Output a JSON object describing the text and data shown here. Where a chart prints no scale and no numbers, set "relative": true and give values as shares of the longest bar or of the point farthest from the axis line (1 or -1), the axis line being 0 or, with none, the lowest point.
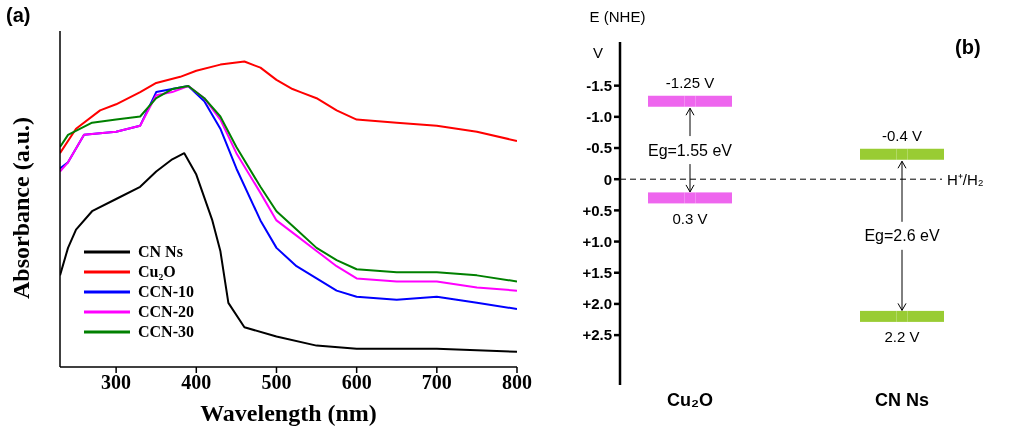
{
  "chart_data": [
    {
      "type": "line",
      "relative": true,
      "xlabel": "Wavelength (nm)",
      "ylabel": "Absorbance (a.u.)",
      "xlim": [
        230,
        800
      ],
      "xticks": [
        300,
        400,
        500,
        600,
        700,
        800
      ],
      "legend": "bottom left",
      "marker": "none",
      "line_style": "solid",
      "annotations": [
        "(a)"
      ],
      "series": [
        {
          "name": "CN Ns",
          "color": "#000000",
          "x": [
            230,
            240,
            250,
            270,
            300,
            330,
            350,
            370,
            385,
            400,
            420,
            430,
            440,
            460,
            500,
            550,
            600,
            700,
            800
          ],
          "values": [
            0.3,
            0.39,
            0.45,
            0.51,
            0.55,
            0.59,
            0.64,
            0.68,
            0.7,
            0.63,
            0.48,
            0.38,
            0.21,
            0.13,
            0.1,
            0.07,
            0.06,
            0.06,
            0.05
          ]
        },
        {
          "name": "Cu₂O",
          "color": "#ff0000",
          "x": [
            230,
            250,
            280,
            300,
            330,
            350,
            380,
            400,
            430,
            460,
            480,
            500,
            520,
            530,
            550,
            575,
            600,
            650,
            700,
            750,
            800
          ],
          "values": [
            0.7,
            0.78,
            0.84,
            0.86,
            0.9,
            0.93,
            0.95,
            0.97,
            0.99,
            1.0,
            0.98,
            0.94,
            0.91,
            0.9,
            0.88,
            0.84,
            0.81,
            0.8,
            0.79,
            0.77,
            0.74
          ]
        },
        {
          "name": "CCN-10",
          "color": "#0000ff",
          "x": [
            230,
            240,
            260,
            300,
            330,
            350,
            370,
            390,
            410,
            430,
            450,
            480,
            500,
            525,
            550,
            575,
            600,
            650,
            700,
            750,
            800
          ],
          "values": [
            0.65,
            0.67,
            0.76,
            0.77,
            0.79,
            0.9,
            0.91,
            0.92,
            0.87,
            0.78,
            0.65,
            0.48,
            0.39,
            0.33,
            0.29,
            0.25,
            0.23,
            0.22,
            0.23,
            0.21,
            0.19
          ]
        },
        {
          "name": "CCN-20",
          "color": "#ff00ff",
          "x": [
            230,
            240,
            260,
            300,
            330,
            350,
            370,
            390,
            410,
            430,
            450,
            480,
            500,
            525,
            550,
            575,
            600,
            650,
            700,
            750,
            800
          ],
          "values": [
            0.64,
            0.67,
            0.76,
            0.77,
            0.79,
            0.89,
            0.9,
            0.92,
            0.88,
            0.81,
            0.7,
            0.57,
            0.48,
            0.43,
            0.38,
            0.33,
            0.29,
            0.28,
            0.28,
            0.26,
            0.25
          ]
        },
        {
          "name": "CCN-30",
          "color": "#008000",
          "x": [
            230,
            240,
            270,
            300,
            330,
            350,
            370,
            390,
            410,
            430,
            450,
            480,
            500,
            525,
            550,
            575,
            600,
            650,
            700,
            750,
            800
          ],
          "values": [
            0.72,
            0.76,
            0.8,
            0.81,
            0.82,
            0.88,
            0.91,
            0.92,
            0.88,
            0.82,
            0.72,
            0.59,
            0.51,
            0.45,
            0.39,
            0.35,
            0.32,
            0.31,
            0.31,
            0.3,
            0.28
          ]
        }
      ]
    },
    {
      "type": "scatter",
      "marker": "square",
      "ylabel": "E (NHE)",
      "categories": [
        "Cu₂O",
        "CN Ns"
      ],
      "ylim": [
        3.3,
        -2.2
      ],
      "yticks": [
        {
          "value": -1.5,
          "label": "-1.5"
        },
        {
          "value": -1.0,
          "label": "-1.0"
        },
        {
          "value": -0.5,
          "label": "-0.5"
        },
        0,
        {
          "value": 0.5,
          "label": "+0.5"
        },
        {
          "value": 1.0,
          "label": "+1.0"
        },
        {
          "value": 1.5,
          "label": "+1.5"
        },
        {
          "value": 2.0,
          "label": "+2.0"
        },
        {
          "value": 2.5,
          "label": "+2.5"
        }
      ],
      "ref_lines": [
        {
          "axis": "y",
          "value": 0,
          "label": "H⁺/H₂",
          "color": "#000000",
          "line_style": "dashed"
        }
      ],
      "annotations": [
        "V",
        "(b)",
        {
          "text": "Eg=1.55 eV",
          "x": "Cu₂O"
        },
        {
          "text": "Eg=2.6 eV",
          "x": "CN Ns"
        }
      ],
      "series": [
        {
          "colors": [
            "#ee66ee",
            "#99cc33"
          ],
          "values": [
            -1.25,
            -0.4
          ],
          "value_labels": [
            "-1.25 V",
            "-0.4 V"
          ]
        },
        {
          "colors": [
            "#ee66ee",
            "#99cc33"
          ],
          "values": [
            0.3,
            2.2
          ],
          "value_labels": [
            "0.3 V",
            "2.2 V"
          ]
        }
      ]
    }
  ]
}
